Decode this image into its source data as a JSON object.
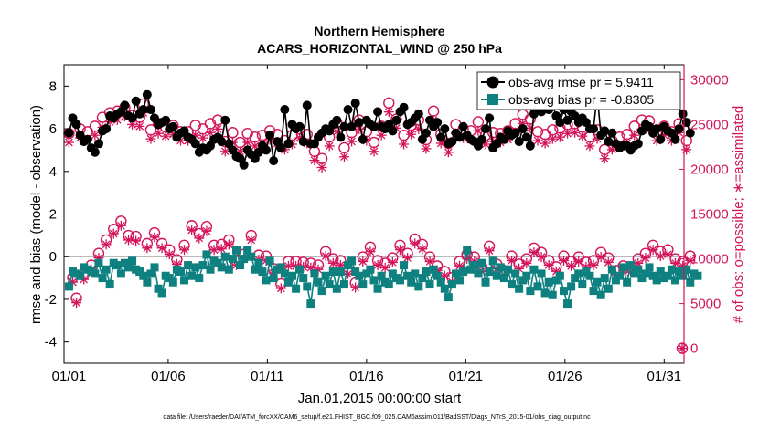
{
  "chart_data": {
    "type": "line",
    "title": [
      "Northern Hemisphere",
      "ACARS_HORIZONTAL_WIND @ 250 hPa"
    ],
    "xlabel": "Jan.01,2015 00:00:00 start",
    "ylabel_left": "rmse and bias (model - observation)",
    "ylabel_right": "# of obs: o=possible; ∗=assimilated",
    "footer": "data file: /Users/raeder/DAI/ATM_forcXX/CAM6_setup/f.e21.FHIST_BGC.f09_025.CAM6assim.011/BadSST/Diags_NTrS_2015-01/obs_diag_output.nc",
    "x_range": [
      0.75,
      32.0
    ],
    "ylim_left": [
      -5,
      9
    ],
    "ylim_right": [
      -1670,
      31670
    ],
    "x_ticks": [
      1,
      6,
      11,
      16,
      21,
      26,
      31
    ],
    "x_tick_labels": [
      "01/01",
      "01/06",
      "01/11",
      "01/16",
      "01/21",
      "01/26",
      "01/31"
    ],
    "y_ticks_left": [
      -4,
      -2,
      0,
      2,
      4,
      6,
      8
    ],
    "y_tick_labels_left": [
      "-4",
      "-2",
      "0",
      "2",
      "4",
      "6",
      "8"
    ],
    "y_ticks_right": [
      0,
      5000,
      10000,
      15000,
      20000,
      25000,
      30000
    ],
    "y_tick_labels_right": [
      "0",
      "5000",
      "10000",
      "15000",
      "20000",
      "25000",
      "30000"
    ],
    "zero_line": 0,
    "legend": {
      "position": "top-right",
      "entries": [
        "obs-avg rmse pr = 5.9411",
        "obs-avg bias pr = -0.8305"
      ]
    },
    "colors": {
      "rmse": "#000000",
      "bias": "#0e8080",
      "counts": "#d4145a",
      "zero_line": "#b0b0b0",
      "axes": "#000000"
    },
    "series": [
      {
        "name": "obs-avg rmse pr = 5.9411",
        "axis": "left",
        "marker": "filled-circle",
        "color": "#000000",
        "values": [
          5.8,
          6.5,
          6.2,
          5.7,
          5.4,
          5.5,
          5.1,
          4.9,
          5.3,
          5.9,
          6.0,
          6.6,
          6.5,
          6.7,
          6.8,
          7.1,
          6.6,
          6.5,
          7.3,
          6.7,
          6.9,
          7.6,
          6.9,
          6.5,
          6.2,
          6.3,
          6.4,
          6.0,
          6.1,
          5.6,
          5.8,
          5.9,
          5.6,
          5.5,
          5.3,
          4.9,
          5.1,
          5.0,
          5.2,
          5.5,
          5.6,
          5.4,
          6.4,
          5.3,
          5.0,
          4.7,
          4.6,
          4.3,
          5.0,
          4.8,
          4.6,
          4.9,
          5.2,
          5.0,
          5.7,
          4.5,
          5.4,
          5.1,
          6.9,
          5.3,
          6.2,
          6.0,
          6.1,
          5.4,
          7.1,
          5.3,
          5.3,
          5.6,
          5.8,
          6.0,
          5.9,
          6.2,
          6.4,
          5.6,
          6.1,
          6.9,
          6.1,
          7.2,
          6.3,
          5.5,
          6.4,
          6.2,
          6.1,
          6.8,
          6.1,
          6.0,
          6.2,
          5.9,
          6.4,
          6.8,
          7.0,
          6.2,
          6.3,
          6.5,
          6.7,
          5.5,
          5.8,
          6.4,
          6.1,
          6.3,
          5.6,
          6.0,
          5.3,
          5.4,
          5.8,
          5.6,
          6.1,
          5.7,
          5.5,
          5.4,
          5.2,
          5.5,
          6.0,
          6.5,
          5.1,
          5.3,
          5.6,
          5.5,
          5.9,
          5.7,
          5.8,
          5.4,
          6.0,
          5.6,
          5.2,
          6.7,
          7.2,
          6.8,
          7.0,
          6.9,
          7.1,
          6.6,
          6.3,
          6.9,
          6.4,
          6.8,
          6.6,
          6.3,
          6.5,
          6.3,
          6.0,
          6.0,
          7.6,
          5.7,
          5.9,
          5.4,
          5.8,
          5.3,
          5.1,
          5.2,
          5.2,
          5.0,
          5.2,
          5.3,
          5.9,
          6.2,
          6.1,
          5.8,
          6.0,
          5.5,
          6.1,
          5.9,
          5.8,
          5.5,
          6.0,
          6.7,
          6.3,
          5.8
        ]
      },
      {
        "name": "obs-avg bias pr = -0.8305",
        "axis": "left",
        "marker": "filled-square",
        "color": "#0e8080",
        "values": [
          -1.4,
          -0.7,
          -0.8,
          -0.9,
          -0.5,
          -0.6,
          -0.7,
          -0.8,
          -0.3,
          -1.0,
          -0.6,
          -1.3,
          -0.3,
          -0.4,
          -0.8,
          -0.3,
          -0.5,
          -0.2,
          -0.6,
          -0.7,
          -0.9,
          -1.2,
          -0.8,
          -0.5,
          -1.5,
          -1.7,
          -0.9,
          -1.0,
          -1.2,
          -0.6,
          -0.7,
          -1.1,
          -0.4,
          -0.9,
          -0.5,
          -1.0,
          -0.4,
          0.1,
          -0.6,
          -0.2,
          -0.3,
          -0.5,
          0.0,
          -0.6,
          -0.1,
          0.3,
          -0.4,
          -0.1,
          0.3,
          0.0,
          -0.6,
          -0.3,
          -0.7,
          -1.1,
          -0.2,
          -1.0,
          -0.6,
          -0.5,
          -0.8,
          -1.2,
          -0.9,
          -1.5,
          -0.6,
          -1.0,
          -1.4,
          -2.2,
          -0.8,
          -1.2,
          -1.6,
          -0.9,
          -1.3,
          -0.7,
          -1.5,
          -0.7,
          -1.3,
          -0.4,
          -0.2,
          -0.7,
          -0.9,
          -1.3,
          -0.8,
          -0.6,
          -1.1,
          -1.5,
          -0.9,
          -1.2,
          -1.3,
          -0.8,
          -1.0,
          -1.1,
          -0.4,
          -0.9,
          -1.2,
          -0.8,
          -1.4,
          -1.0,
          -0.7,
          -1.3,
          -0.6,
          -0.9,
          -1.2,
          -1.5,
          -1.9,
          -1.3,
          -0.8,
          -1.1,
          -0.7,
          0.3,
          -0.6,
          -0.4,
          -0.8,
          -0.3,
          -1.2,
          -0.7,
          -0.2,
          -0.9,
          -0.5,
          -1.0,
          -0.6,
          -1.3,
          -0.8,
          -1.5,
          -1.1,
          -0.9,
          -1.6,
          -0.6,
          -1.4,
          -0.8,
          -1.7,
          -1.2,
          -1.8,
          -1.1,
          -0.9,
          -1.6,
          -2.2,
          -1.4,
          -1.0,
          -0.8,
          -1.3,
          -0.7,
          -0.9,
          -1.6,
          -1.2,
          -1.8,
          -1.0,
          -1.5,
          -0.6,
          -1.1,
          -0.9,
          -0.5,
          -1.2,
          -0.4,
          -0.8,
          -0.6,
          -1.0,
          -0.8,
          -0.5,
          -0.9,
          -1.1,
          -0.7,
          -1.0,
          -0.9,
          -0.6,
          -1.1,
          -0.7,
          -0.9,
          -0.6,
          -1.2,
          -0.8,
          -0.9
        ]
      },
      {
        "name": "possible obs",
        "axis": "right",
        "marker": "open-circle",
        "color": "#d4145a",
        "values": [
          24000,
          7900,
          5600,
          24500,
          8200,
          24200,
          9300,
          24800,
          10600,
          25800,
          12100,
          26300,
          13300,
          26500,
          14200,
          26900,
          12600,
          26000,
          12500,
          25800,
          27300,
          11700,
          24400,
          12900,
          25100,
          11700,
          24700,
          11000,
          24900,
          9900,
          24200,
          11500,
          24200,
          13700,
          24900,
          12800,
          24500,
          13600,
          25100,
          11500,
          25500,
          11600,
          23100,
          12100,
          24100,
          9800,
          23000,
          10500,
          24000,
          12600,
          23600,
          10400,
          23800,
          10300,
          24300,
          8900,
          23900,
          7200,
          23200,
          9700,
          23800,
          9700,
          24500,
          9600,
          23900,
          9500,
          22000,
          9300,
          21200,
          10800,
          23600,
          10000,
          25200,
          9800,
          22400,
          8800,
          24100,
          7300,
          25500,
          10200,
          24200,
          11300,
          23000,
          9800,
          24800,
          9500,
          27400,
          10100,
          25600,
          11500,
          23800,
          10600,
          24900,
          12200,
          25500,
          11600,
          23300,
          10200,
          26500,
          9200,
          23900,
          8600,
          22900,
          7900,
          25000,
          9700,
          24500,
          10500,
          24300,
          10200,
          25300,
          9100,
          23800,
          11400,
          24100,
          9400,
          24000,
          8700,
          24300,
          10300,
          25100,
          9400,
          26100,
          10000,
          25600,
          11200,
          24200,
          10700,
          23900,
          9800,
          24400,
          9100,
          24600,
          10300,
          25000,
          9700,
          25100,
          10200,
          24700,
          9600,
          23600,
          9800,
          24400,
          10700,
          22200,
          10100,
          23200,
          8700,
          23600,
          9200,
          23900,
          9000,
          24800,
          10000,
          25500,
          10600,
          25400,
          11500,
          24200,
          10800,
          24800,
          11000,
          24200,
          10000,
          25100,
          9700,
          23200,
          10300
        ]
      },
      {
        "name": "assimilated obs",
        "axis": "right",
        "marker": "asterisk",
        "color": "#d4145a",
        "values": [
          23000,
          7400,
          5100,
          23500,
          7700,
          23300,
          8800,
          23800,
          10100,
          24700,
          11600,
          25300,
          12800,
          25500,
          13700,
          25900,
          12100,
          25000,
          12000,
          24800,
          26300,
          11200,
          23400,
          12400,
          24000,
          11200,
          23700,
          10500,
          23900,
          9400,
          23200,
          11000,
          23200,
          13200,
          23800,
          12300,
          23500,
          13100,
          24100,
          11000,
          24500,
          11100,
          22000,
          11600,
          23000,
          9300,
          22000,
          10000,
          23000,
          12100,
          22600,
          9900,
          22800,
          9800,
          23300,
          8400,
          22900,
          6700,
          22200,
          9200,
          22800,
          9200,
          23500,
          9100,
          22900,
          9000,
          21000,
          8800,
          20200,
          10300,
          22600,
          9500,
          24200,
          9300,
          21400,
          8300,
          23100,
          6800,
          24500,
          9700,
          23200,
          10800,
          22000,
          9300,
          23800,
          9000,
          26400,
          9600,
          24600,
          11000,
          22800,
          10100,
          23900,
          11700,
          24500,
          11100,
          22300,
          9700,
          25500,
          8700,
          22900,
          8100,
          21900,
          7400,
          24000,
          9200,
          23500,
          10000,
          23300,
          9700,
          24300,
          8600,
          22800,
          10900,
          23100,
          8900,
          23000,
          8200,
          23300,
          9800,
          24100,
          8900,
          25100,
          9500,
          24600,
          10700,
          23200,
          10200,
          22900,
          9300,
          23400,
          8600,
          23600,
          9800,
          24000,
          9200,
          24100,
          9700,
          23700,
          9100,
          22600,
          9300,
          23400,
          10200,
          21200,
          9600,
          22200,
          8200,
          22600,
          8700,
          22900,
          8500,
          23800,
          9500,
          24500,
          10100,
          24400,
          11000,
          23200,
          10300,
          23800,
          10500,
          23200,
          9500,
          24100,
          9200,
          22200,
          9800
        ]
      }
    ]
  }
}
